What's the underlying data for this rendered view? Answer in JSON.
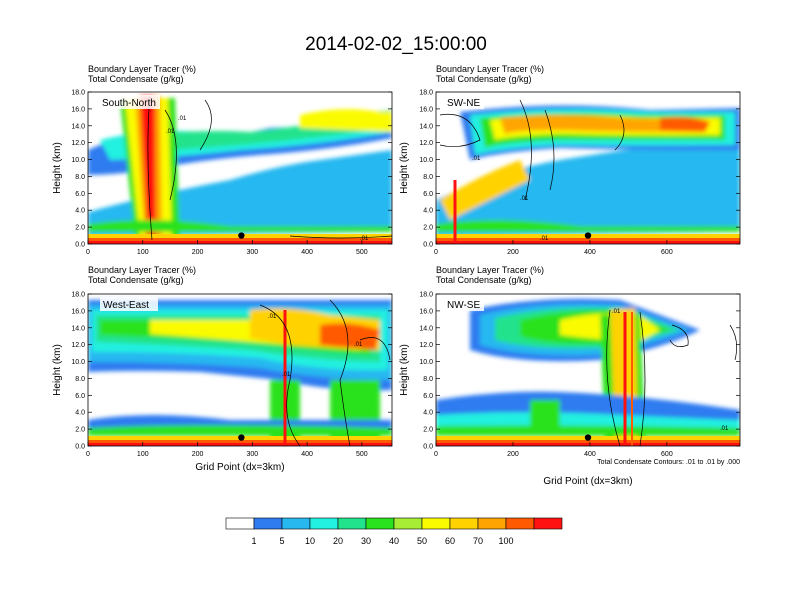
{
  "title": "2014-02-02_15:00:00",
  "header_line1": "Boundary Layer Tracer   (%)",
  "header_line2": "Total Condensate   (g/kg)",
  "footnote": "Total Condensate Contours: .01 to .01 by .000",
  "xlabel": "Grid Point (dx=3km)",
  "ylabel": "Height (km)",
  "colors": [
    "#ffffff",
    "#2f7cf0",
    "#27b8f0",
    "#22f0e0",
    "#21e38c",
    "#2ae21e",
    "#a7ec35",
    "#fbfb00",
    "#ffd200",
    "#ffa400",
    "#ff5a00",
    "#ff1111"
  ],
  "colorbar": {
    "labels": [
      "1",
      "5",
      "10",
      "20",
      "30",
      "40",
      "50",
      "60",
      "70",
      "100"
    ]
  },
  "chart_data": [
    {
      "type": "heatmap",
      "panel_label": "South-North",
      "xlim": [
        0,
        555
      ],
      "ylim": [
        0,
        18
      ],
      "xticks": [
        "0",
        "100",
        "200",
        "300",
        "400",
        "500"
      ],
      "xtick_values": [
        0,
        100,
        200,
        300,
        400,
        500
      ],
      "yticks": [
        "0.0",
        "2.0",
        "4.0",
        "6.0",
        "8.0",
        "10.0",
        "12.0",
        "14.0",
        "16.0",
        "18.0"
      ],
      "marker": {
        "x": 280,
        "y": 1.0
      },
      "contour_label_values": [
        ".01",
        ".01",
        ".01"
      ]
    },
    {
      "type": "heatmap",
      "panel_label": "SW-NE",
      "xlim": [
        0,
        790
      ],
      "ylim": [
        0,
        18
      ],
      "xticks": [
        "0",
        "200",
        "400",
        "600"
      ],
      "xtick_values": [
        0,
        200,
        400,
        600
      ],
      "yticks": [
        "0.0",
        "2.0",
        "4.0",
        "6.0",
        "8.0",
        "10.0",
        "12.0",
        "14.0",
        "16.0",
        "18.0"
      ],
      "marker": {
        "x": 395,
        "y": 1.0
      },
      "contour_label_values": [
        ".01",
        ".01",
        ".01"
      ]
    },
    {
      "type": "heatmap",
      "panel_label": "West-East",
      "xlim": [
        0,
        555
      ],
      "ylim": [
        0,
        18
      ],
      "xticks": [
        "0",
        "100",
        "200",
        "300",
        "400",
        "500"
      ],
      "xtick_values": [
        0,
        100,
        200,
        300,
        400,
        500
      ],
      "yticks": [
        "0.0",
        "2.0",
        "4.0",
        "6.0",
        "8.0",
        "10.0",
        "12.0",
        "14.0",
        "16.0",
        "18.0"
      ],
      "marker": {
        "x": 280,
        "y": 1.0
      },
      "contour_label_values": [
        ".01",
        ".01",
        ".01"
      ]
    },
    {
      "type": "heatmap",
      "panel_label": "NW-SE",
      "xlim": [
        0,
        790
      ],
      "ylim": [
        0,
        18
      ],
      "xticks": [
        "0",
        "200",
        "400",
        "600"
      ],
      "xtick_values": [
        0,
        200,
        400,
        600
      ],
      "yticks": [
        "0.0",
        "2.0",
        "4.0",
        "6.0",
        "8.0",
        "10.0",
        "12.0",
        "14.0",
        "16.0",
        "18.0"
      ],
      "marker": {
        "x": 395,
        "y": 1.0
      },
      "contour_label_values": [
        ".01",
        ".01"
      ]
    }
  ]
}
